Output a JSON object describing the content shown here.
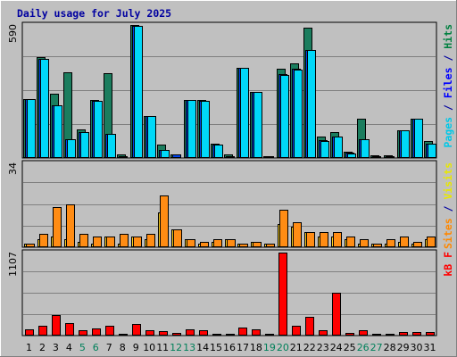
{
  "chart_data": {
    "type": "bar",
    "title": "Daily usage for July 2025",
    "categories": [
      "1",
      "2",
      "3",
      "4",
      "5",
      "6",
      "7",
      "8",
      "9",
      "10",
      "11",
      "12",
      "13",
      "14",
      "15",
      "16",
      "17",
      "18",
      "19",
      "20",
      "21",
      "22",
      "23",
      "24",
      "25",
      "26",
      "27",
      "28",
      "29",
      "30",
      "31"
    ],
    "weekend_days": [
      "5",
      "6",
      "12",
      "13",
      "19",
      "20",
      "26",
      "27"
    ],
    "panels": [
      {
        "id": "hits",
        "ymax": 590,
        "ymax_label": "590",
        "label_parts": [
          {
            "text": "Pages",
            "color": "#00C8E8"
          },
          {
            "text": " / ",
            "color": "#0000A0"
          },
          {
            "text": "Files",
            "color": "#0000FF"
          },
          {
            "text": " / ",
            "color": "#0000A0"
          },
          {
            "text": "Hits",
            "color": "#008040"
          }
        ],
        "series": [
          {
            "name": "Hits",
            "color": "#1B7D5E",
            "values": [
              258,
              445,
              285,
              380,
              125,
              255,
              375,
              10,
              590,
              185,
              55,
              12,
              255,
              255,
              60,
              10,
              400,
              290,
              5,
              395,
              420,
              580,
              90,
              110,
              25,
              172,
              8,
              8,
              120,
              170,
              70
            ]
          },
          {
            "name": "Files",
            "color": "#0044EE",
            "values": [
              258,
              440,
              230,
              80,
              110,
              250,
              105,
              5,
              585,
              185,
              30,
              12,
              255,
              250,
              55,
              5,
              400,
              290,
              2,
              370,
              395,
              480,
              75,
              90,
              20,
              80,
              3,
              3,
              120,
              170,
              60
            ]
          },
          {
            "name": "Pages",
            "color": "#00D8F8",
            "values": [
              258,
              440,
              230,
              80,
              110,
              250,
              105,
              0,
              585,
              185,
              30,
              0,
              255,
              250,
              55,
              0,
              400,
              290,
              0,
              365,
              390,
              480,
              70,
              90,
              15,
              80,
              0,
              0,
              120,
              170,
              60
            ]
          }
        ]
      },
      {
        "id": "visits",
        "ymax": 34,
        "ymax_label": "34",
        "label_parts": [
          {
            "text": "Sites",
            "color": "#FF8800"
          },
          {
            "text": " / ",
            "color": "#0000A0"
          },
          {
            "text": "Visits",
            "color": "#E8E800"
          }
        ],
        "series": [
          {
            "name": "Visits",
            "color": "#FFD21E",
            "values": [
              1,
              3,
              4,
              3,
              2,
              1,
              4,
              1,
              4,
              3,
              14,
              7,
              3,
              1,
              2,
              3,
              1,
              2,
              1,
              9,
              8,
              6,
              4,
              4,
              3,
              1,
              1,
              1,
              2,
              1,
              3
            ]
          },
          {
            "name": "Sites",
            "color": "#FF8C14",
            "values": [
              1,
              5,
              16,
              17,
              5,
              4,
              4,
              5,
              4,
              5,
              21,
              7,
              3,
              2,
              3,
              3,
              1,
              2,
              1,
              15,
              10,
              6,
              6,
              6,
              4,
              3,
              1,
              3,
              4,
              2,
              4
            ]
          }
        ]
      },
      {
        "id": "kbytes",
        "ymax": 1107,
        "ymax_label": "1107",
        "label_parts": [
          {
            "text": "kB F",
            "color": "#FF0000"
          }
        ],
        "series": [
          {
            "name": "kB F",
            "color": "#FF0000",
            "values": [
              75,
              122,
              270,
              160,
              55,
              85,
              115,
              5,
              140,
              60,
              50,
              25,
              70,
              65,
              18,
              10,
              100,
              70,
              5,
              1107,
              125,
              245,
              60,
              560,
              25,
              65,
              15,
              10,
              40,
              40,
              40
            ]
          }
        ]
      }
    ]
  }
}
